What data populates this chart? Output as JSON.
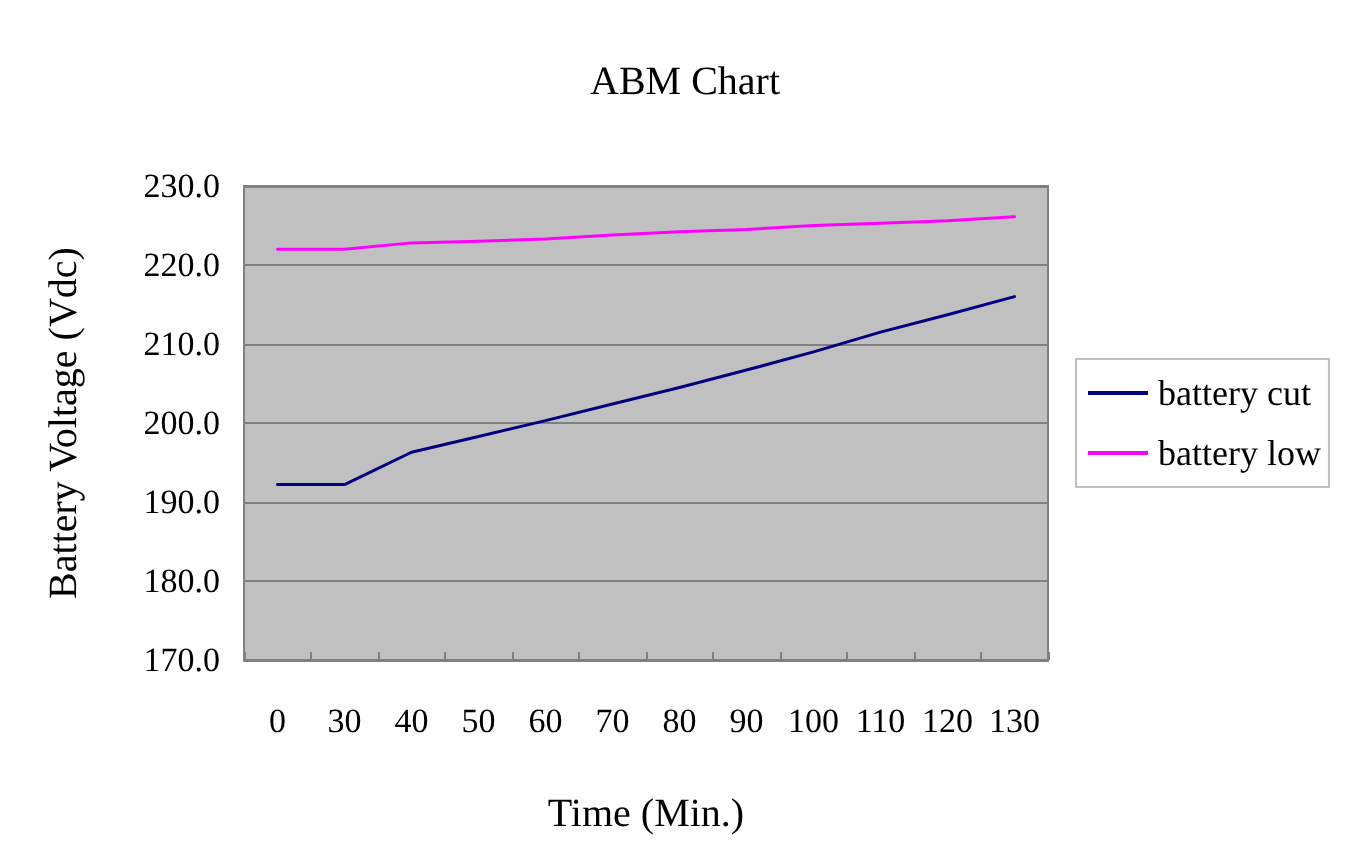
{
  "chart_data": {
    "type": "line",
    "title": "ABM Chart",
    "xlabel": "Time (Min.)",
    "ylabel": "Battery Voltage (Vdc)",
    "categories": [
      "0",
      "30",
      "40",
      "50",
      "60",
      "70",
      "80",
      "90",
      "100",
      "110",
      "120",
      "130"
    ],
    "series": [
      {
        "name": "battery cut",
        "color": "#000080",
        "values": [
          192.2,
          192.2,
          196.3,
          198.3,
          200.3,
          202.4,
          204.5,
          206.7,
          209.0,
          211.5,
          213.7,
          216.0
        ]
      },
      {
        "name": "battery low",
        "color": "#ff00ff",
        "values": [
          222.0,
          222.0,
          222.8,
          223.0,
          223.3,
          223.8,
          224.2,
          224.5,
          225.0,
          225.3,
          225.6,
          226.1
        ]
      }
    ],
    "ylim": [
      170,
      230
    ],
    "yticks": [
      {
        "value": 170,
        "label": "170.0"
      },
      {
        "value": 180,
        "label": "180.0"
      },
      {
        "value": 190,
        "label": "190.0"
      },
      {
        "value": 200,
        "label": "200.0"
      },
      {
        "value": 210,
        "label": "210.0"
      },
      {
        "value": 220,
        "label": "220.0"
      },
      {
        "value": 230,
        "label": "230.0"
      }
    ],
    "grid": "y",
    "legend": "right",
    "marker": "none",
    "line_style": "solid"
  }
}
